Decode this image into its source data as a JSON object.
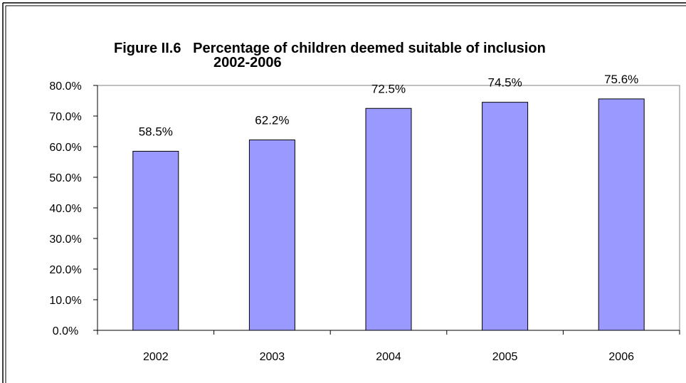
{
  "chart_data": {
    "type": "bar",
    "title_line1": "Figure II.6   Percentage of children deemed suitable of inclusion",
    "title_line2": "2002-2006",
    "categories": [
      "2002",
      "2003",
      "2004",
      "2005",
      "2006"
    ],
    "values": [
      58.5,
      62.2,
      72.5,
      74.5,
      75.6
    ],
    "data_labels": [
      "58.5%",
      "62.2%",
      "72.5%",
      "74.5%",
      "75.6%"
    ],
    "y_ticks": [
      "0.0%",
      "10.0%",
      "20.0%",
      "30.0%",
      "40.0%",
      "50.0%",
      "60.0%",
      "70.0%",
      "80.0%"
    ],
    "ylim": [
      0,
      80
    ],
    "grid": false,
    "colors": {
      "bar_fill": "#9999ff",
      "bar_stroke": "#000000",
      "plot_border": "#808080",
      "frame": "#000000"
    }
  }
}
